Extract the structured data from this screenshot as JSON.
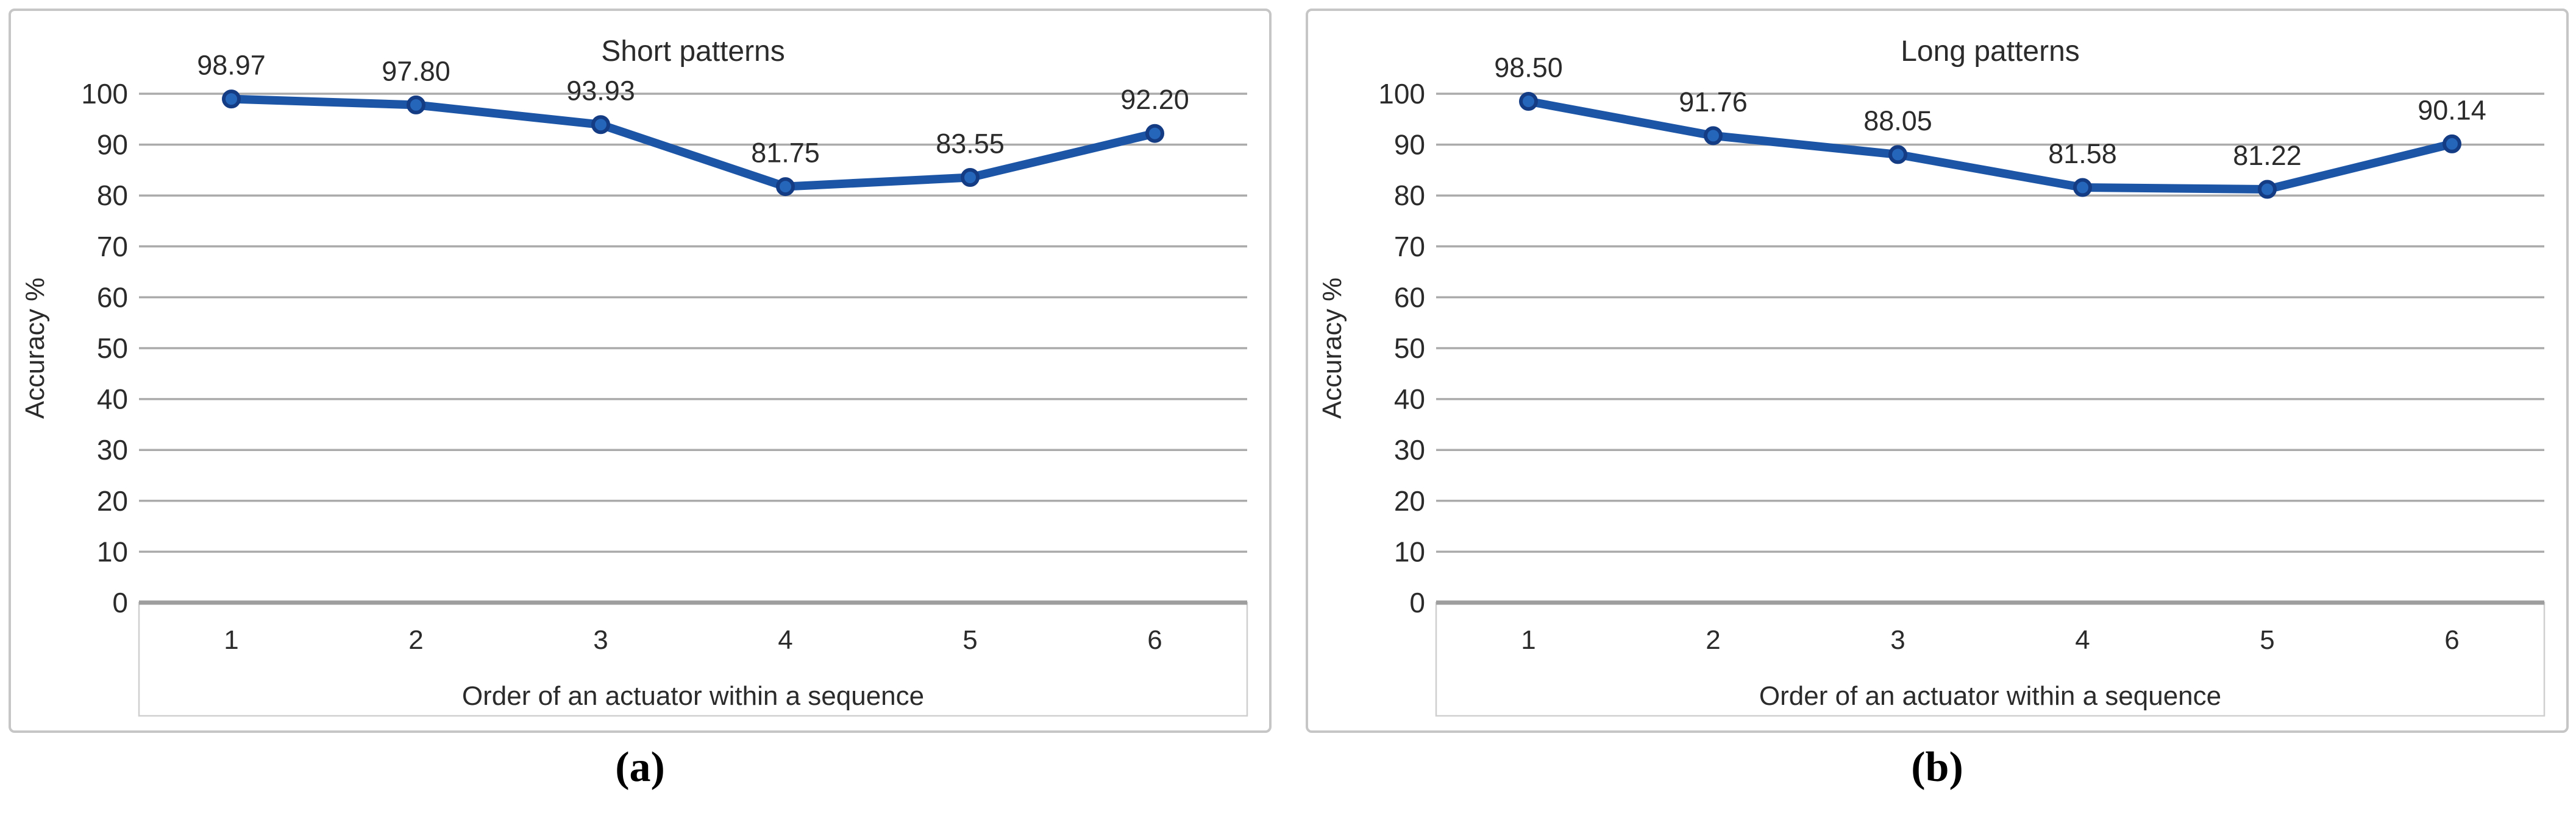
{
  "page": {
    "background": "#ffffff"
  },
  "colors": {
    "series_line": "#1d55a6",
    "marker_fill": "#2565ba",
    "marker_stroke": "#143c84",
    "gridline": "#ababab",
    "axis_line": "#9e9e9e",
    "label_box_border": "#cfcfcf",
    "panel_border": "#c6c6c6",
    "text": "#2b2b2b"
  },
  "captions": {
    "a": "(a)",
    "b": "(b)"
  },
  "chart_data": [
    {
      "type": "line",
      "title": "Short patterns",
      "x": [
        1,
        2,
        3,
        4,
        5,
        6
      ],
      "values": [
        98.97,
        97.8,
        93.93,
        81.75,
        83.55,
        92.2
      ],
      "data_labels": [
        "98.97",
        "97.80",
        "93.93",
        "81.75",
        "83.55",
        "92.20"
      ],
      "xlabel": "Order of an actuator within a sequence",
      "ylabel": "Accuracy %",
      "ylim": [
        0,
        100
      ],
      "ytick_step": 10,
      "grid": true,
      "legend": "none"
    },
    {
      "type": "line",
      "title": "Long patterns",
      "x": [
        1,
        2,
        3,
        4,
        5,
        6
      ],
      "values": [
        98.5,
        91.76,
        88.05,
        81.58,
        81.22,
        90.14
      ],
      "data_labels": [
        "98.50",
        "91.76",
        "88.05",
        "81.58",
        "81.22",
        "90.14"
      ],
      "xlabel": "Order of an actuator within a sequence",
      "ylabel": "Accuracy %",
      "ylim": [
        0,
        100
      ],
      "ytick_step": 10,
      "grid": true,
      "legend": "none"
    }
  ]
}
